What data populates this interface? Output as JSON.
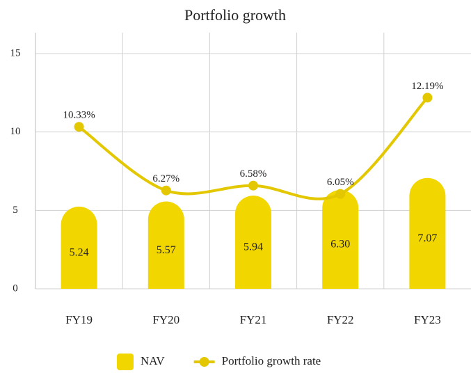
{
  "chart_data": {
    "type": "bar",
    "title": "Portfolio growth",
    "categories": [
      "FY19",
      "FY20",
      "FY21",
      "FY22",
      "FY23"
    ],
    "series": [
      {
        "name": "NAV",
        "type": "bar",
        "color": "#f2d600",
        "values": [
          5.24,
          5.57,
          5.94,
          6.3,
          7.07
        ],
        "value_labels": [
          "5.24",
          "5.57",
          "5.94",
          "6.30",
          "7.07"
        ]
      },
      {
        "name": "Portfolio growth rate",
        "type": "line",
        "color": "#e3c700",
        "values": [
          10.33,
          6.27,
          6.58,
          6.05,
          12.19
        ],
        "value_labels": [
          "10.33%",
          "6.27%",
          "6.58%",
          "6.05%",
          "12.19%"
        ]
      }
    ],
    "ylim": [
      0,
      15
    ],
    "yticks": [
      0,
      5,
      10,
      15
    ],
    "grid": true,
    "legend": "bottom"
  }
}
